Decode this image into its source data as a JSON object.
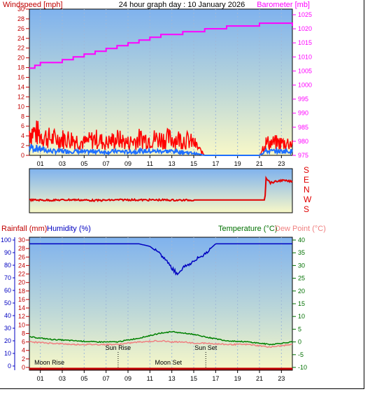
{
  "header": {
    "windspeed_label": "Windspeed [mph]",
    "title": "24 hour graph day : 10 January 2026",
    "barometer_label": "Barometer [mb]"
  },
  "lower_header": {
    "rainfall_label": "Rainfall (mm)",
    "humidity_label": "Humidity (%)",
    "temperature_label": "Temperature (°C)",
    "dewpoint_label": "Dew Point (°C)"
  },
  "direction_labels": [
    "S",
    "E",
    "N",
    "W",
    "S"
  ],
  "colors": {
    "wind_gust": "#ff0000",
    "wind_avg": "#1e6fff",
    "barometer": "#ff00ff",
    "direction": "#e00000",
    "humidity": "#0000c0",
    "temperature": "#008000",
    "dewpoint": "#f08080",
    "rainfall": "#c00000",
    "axis_red": "#c00000",
    "axis_magenta": "#ff00ff",
    "axis_blue": "#0000c0",
    "axis_green": "#007000"
  },
  "annotations": {
    "sun_rise": "Sun Rise",
    "sun_set": "Sun Set",
    "moon_rise": "Moon Rise",
    "moon_set": "Moon Set"
  },
  "chart_data": [
    {
      "type": "line",
      "title": "24 hour graph day : 10 January 2026",
      "ylabel": "Windspeed [mph]",
      "y2label": "Barometer [mb]",
      "ylim": [
        0,
        30
      ],
      "y2lim": [
        975,
        1027
      ],
      "yticks": [
        0,
        2,
        4,
        6,
        8,
        10,
        12,
        14,
        16,
        18,
        20,
        22,
        24,
        26,
        28,
        30
      ],
      "y2ticks": [
        975,
        980,
        985,
        990,
        995,
        1000,
        1005,
        1010,
        1015,
        1020,
        1025
      ],
      "xticks": [
        "01",
        "03",
        "05",
        "07",
        "09",
        "11",
        "13",
        "15",
        "17",
        "19",
        "21",
        "23"
      ],
      "series": [
        {
          "name": "Windspeed gust",
          "x": [
            0,
            1,
            2,
            3,
            4,
            5,
            6,
            7,
            8,
            9,
            10,
            11,
            12,
            13,
            14,
            15,
            16,
            17,
            18,
            19,
            20,
            21,
            21.5,
            22,
            23,
            24
          ],
          "y": [
            6,
            5,
            4,
            4,
            4,
            3,
            4,
            3,
            4,
            3,
            4,
            4,
            4,
            4,
            4,
            3,
            0,
            0,
            0,
            0,
            0,
            0,
            3,
            3,
            3,
            3
          ]
        },
        {
          "name": "Windspeed average",
          "x": [
            0,
            1,
            2,
            3,
            4,
            5,
            6,
            7,
            8,
            9,
            10,
            11,
            12,
            13,
            14,
            15,
            16,
            17,
            18,
            19,
            20,
            21,
            21.5,
            22,
            23,
            24
          ],
          "y": [
            2,
            1.5,
            1,
            1,
            1,
            0.8,
            1,
            0.8,
            1,
            0.8,
            1,
            1,
            1,
            1,
            0.8,
            0.5,
            0,
            0,
            0,
            0,
            0,
            0,
            1,
            1,
            1,
            1
          ]
        },
        {
          "name": "Barometer",
          "x": [
            0,
            0.5,
            1,
            2,
            3,
            4,
            5,
            6,
            7,
            8,
            9,
            10,
            11,
            12,
            13,
            14,
            15,
            16,
            17,
            18,
            19,
            20,
            21,
            22,
            23,
            24
          ],
          "y": [
            1006,
            1007,
            1008,
            1008,
            1009,
            1010,
            1011,
            1012,
            1013,
            1014,
            1015,
            1016,
            1017,
            1018,
            1018,
            1019,
            1019,
            1020,
            1020,
            1021,
            1021,
            1021,
            1022,
            1022,
            1022,
            1021
          ]
        }
      ]
    },
    {
      "type": "line",
      "ylabel": "Wind direction",
      "yticks": [
        "S",
        "E",
        "N",
        "W",
        "S"
      ],
      "series": [
        {
          "name": "Wind direction",
          "x": [
            0,
            2,
            4,
            6,
            8,
            9,
            10,
            12,
            14,
            15,
            15.1,
            21.5,
            21.6,
            22,
            23,
            24
          ],
          "y": [
            180,
            182,
            178,
            184,
            180,
            178,
            180,
            180,
            182,
            180,
            180,
            180,
            0,
            40,
            20,
            30
          ]
        }
      ]
    },
    {
      "type": "line",
      "ylabel": "Humidity (%)",
      "y2label": "Temperature (°C)",
      "ylim": [
        0,
        100
      ],
      "y2lim": [
        -10,
        40
      ],
      "rain_ylim": [
        0,
        30
      ],
      "yticks_rain": [
        0,
        2,
        4,
        6,
        8,
        10,
        12,
        14,
        16,
        18,
        20,
        22,
        24,
        26,
        28,
        30
      ],
      "yticks_humidity": [
        0,
        10,
        20,
        30,
        40,
        50,
        60,
        70,
        80,
        90,
        100
      ],
      "y2ticks": [
        -10,
        -5,
        0,
        5,
        10,
        15,
        20,
        25,
        30,
        35,
        40
      ],
      "xticks": [
        "01",
        "03",
        "05",
        "07",
        "09",
        "11",
        "13",
        "15",
        "17",
        "19",
        "21",
        "23"
      ],
      "series": [
        {
          "name": "Humidity",
          "x": [
            0,
            2,
            4,
            6,
            8,
            10,
            11,
            12,
            12.5,
            13,
            13.5,
            14,
            15,
            16,
            17,
            18,
            20,
            22,
            24
          ],
          "y": [
            97,
            97,
            97,
            97,
            97,
            97,
            95,
            88,
            84,
            78,
            73,
            78,
            83,
            89,
            97,
            97,
            97,
            97,
            97
          ]
        },
        {
          "name": "Temperature",
          "x": [
            0,
            2,
            4,
            6,
            8,
            10,
            12,
            13,
            14,
            15,
            16,
            18,
            20,
            22,
            23,
            24
          ],
          "y": [
            2,
            1,
            0.5,
            0,
            0,
            1.5,
            3.5,
            4,
            3.5,
            3,
            2,
            0.5,
            0,
            -1,
            -0.5,
            0
          ]
        },
        {
          "name": "Dew Point",
          "x": [
            0,
            2,
            4,
            6,
            8,
            10,
            12,
            13,
            14,
            15,
            16,
            18,
            20,
            22,
            23,
            24
          ],
          "y": [
            0,
            -0.5,
            -1,
            -1,
            -1,
            0,
            0.5,
            0,
            0,
            -0.5,
            -0.5,
            -1,
            -1,
            -2,
            -1.5,
            -1
          ]
        },
        {
          "name": "Rainfall",
          "x": [
            0,
            24
          ],
          "y": [
            0,
            0
          ]
        }
      ],
      "annotations": [
        {
          "label": "Sun Rise",
          "x": 8.1
        },
        {
          "label": "Sun Set",
          "x": 16.1
        },
        {
          "label": "Moon Rise",
          "x": 0.2
        },
        {
          "label": "Moon Set",
          "x": 11.2
        }
      ]
    }
  ]
}
